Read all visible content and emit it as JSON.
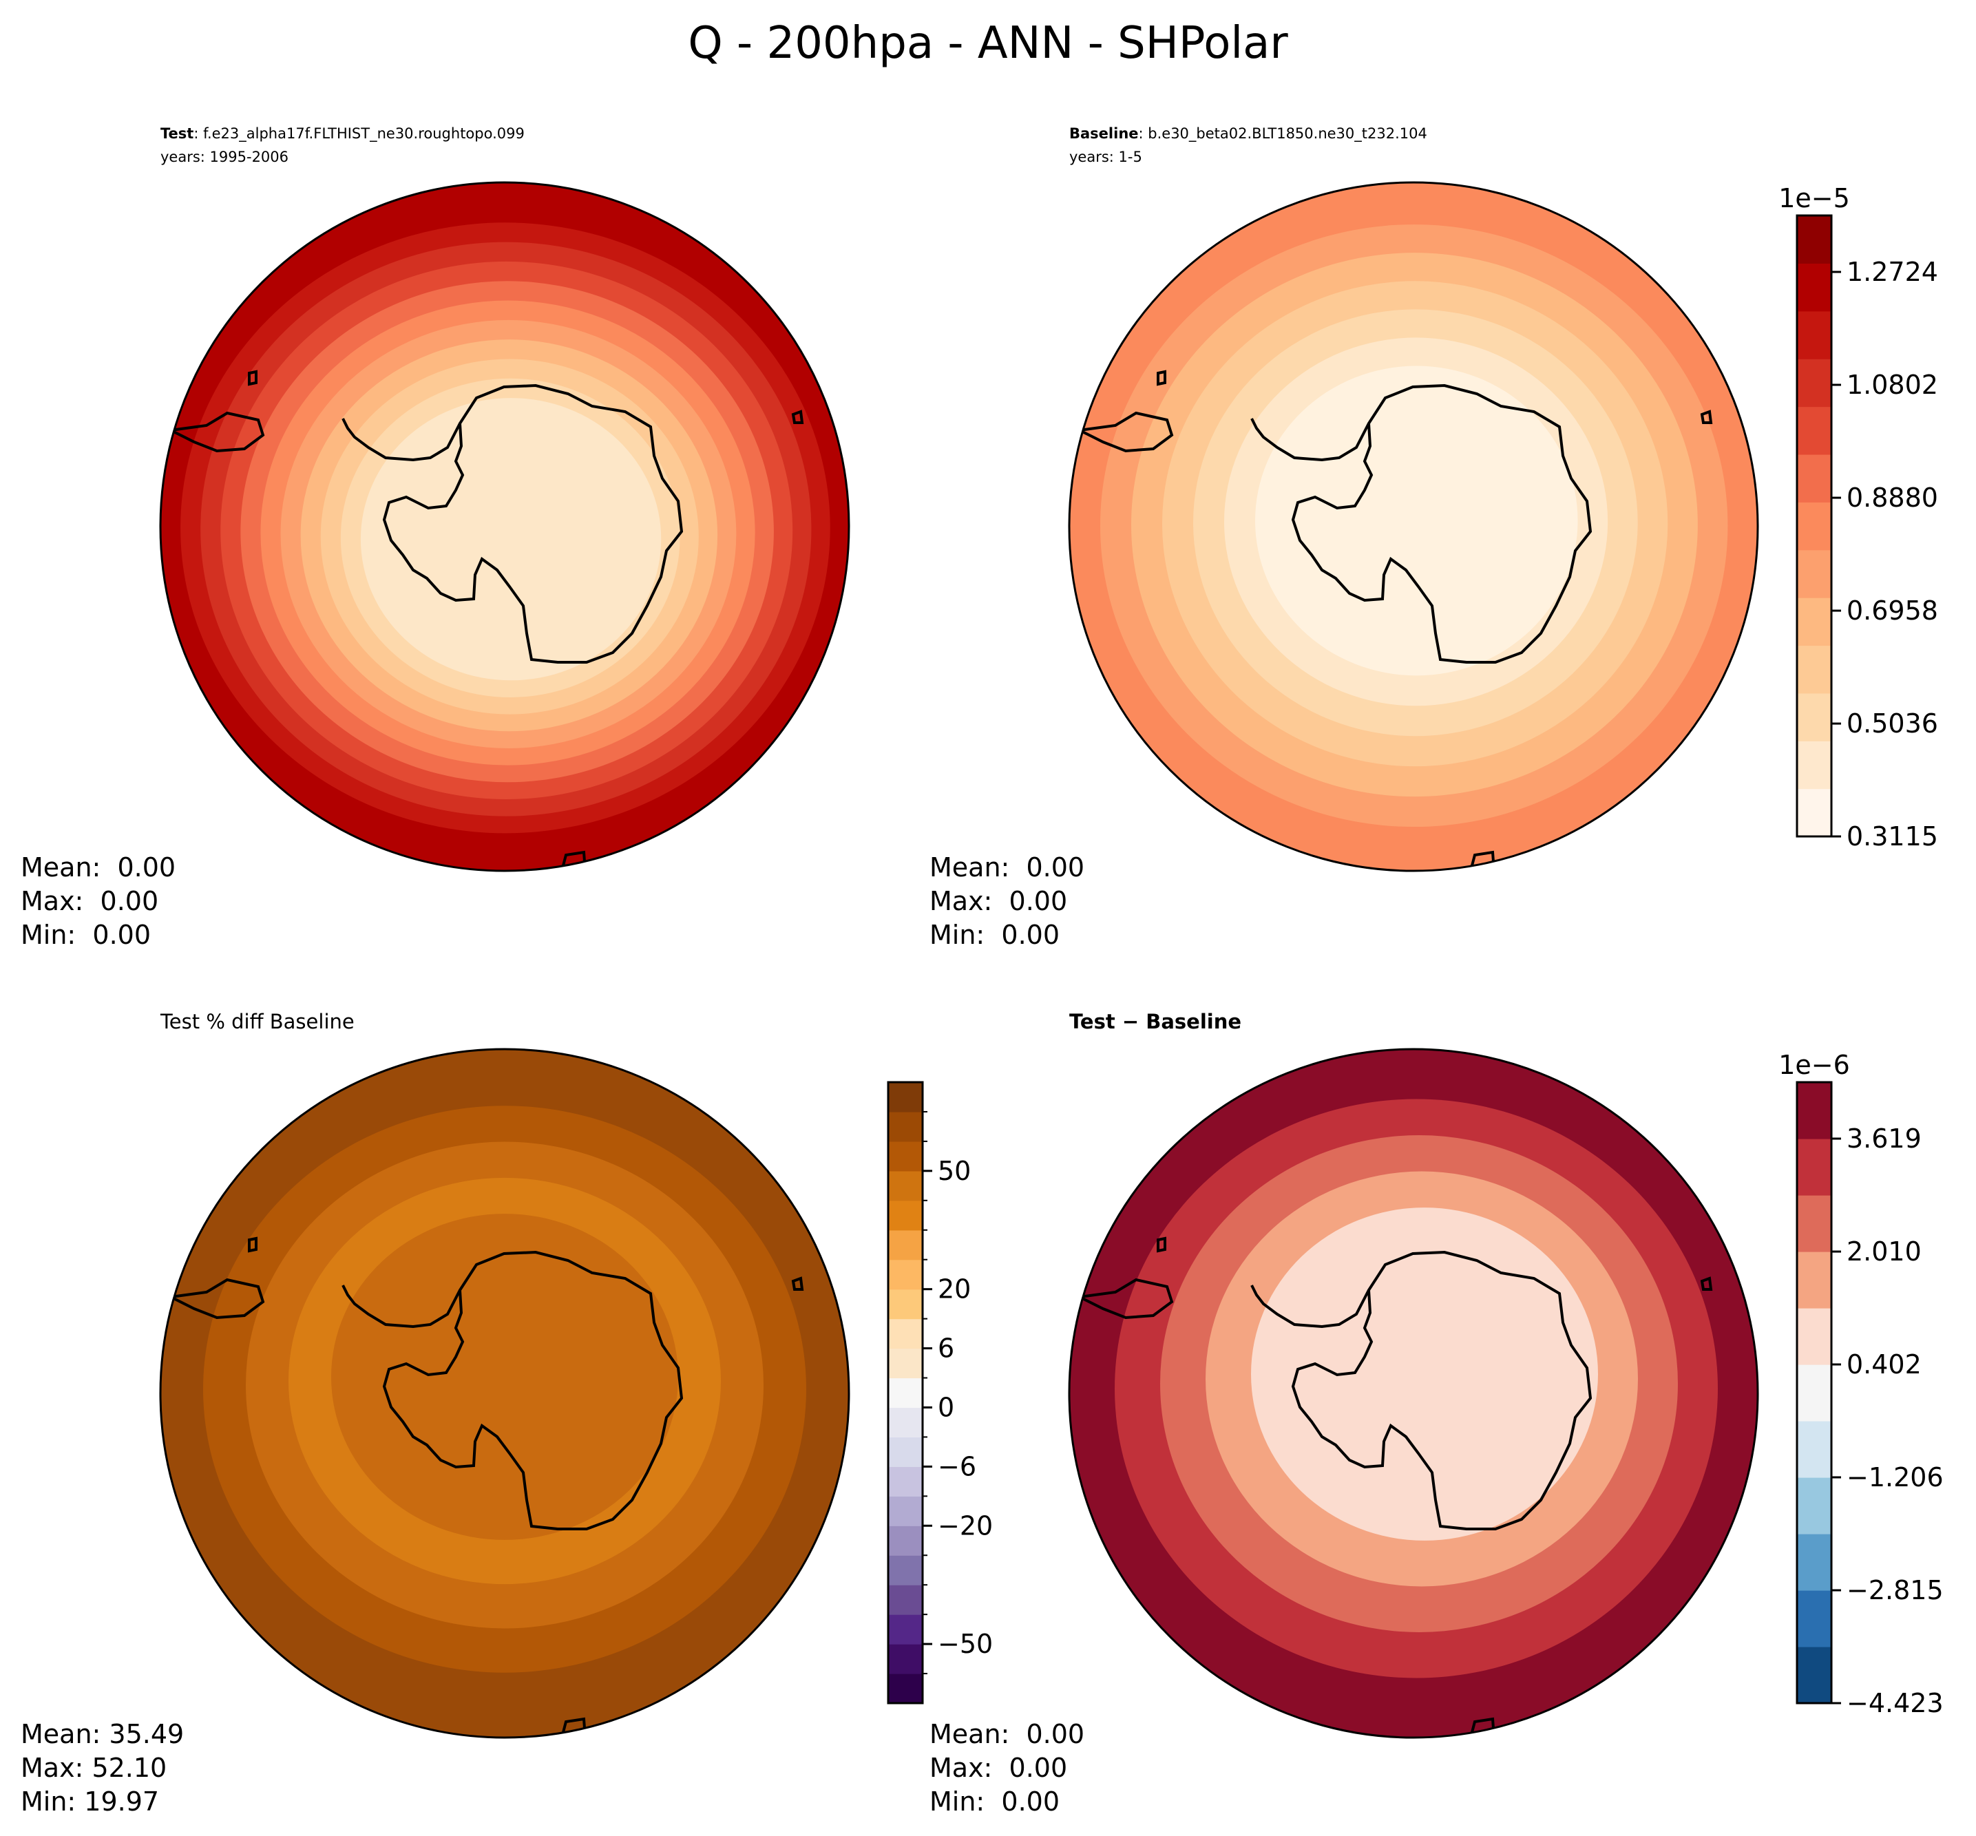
{
  "figure_title": "Q - 200hpa - ANN - SHPolar",
  "colors": {
    "outline": "#000000",
    "background": "#ffffff"
  },
  "chart_data": [
    {
      "type": "heatmap",
      "panel": "test",
      "title_bold": "Test",
      "title_rest": ": f.e23_alpha17f.FLTHIST_ne30.roughtopo.099",
      "subtitle": "years: 1995-2006",
      "projection": "south polar stereographic",
      "ring_colors_inner_to_outer": [
        "#fde7c8",
        "#fdd9ac",
        "#fdca95",
        "#fdb981",
        "#fca06e",
        "#fb8a5c",
        "#f26e4c",
        "#e34a33",
        "#d33122",
        "#c5170f",
        "#b10000"
      ],
      "stats": {
        "mean": "Mean:  0.00",
        "max": "Max:  0.00",
        "min": "Min:  0.00"
      }
    },
    {
      "type": "heatmap",
      "panel": "baseline",
      "title_bold": "Baseline",
      "title_rest": ": b.e30_beta02.BLT1850.ne30_t232.104",
      "subtitle": "years: 1-5",
      "projection": "south polar stereographic",
      "ring_colors_inner_to_outer": [
        "#fff2df",
        "#fee7c9",
        "#fdd9ac",
        "#fdca95",
        "#fdb981",
        "#fca06e",
        "#fb8a5c"
      ],
      "stats": {
        "mean": "Mean:  0.00",
        "max": "Max:  0.00",
        "min": "Min:  0.00"
      },
      "colorbar": {
        "exponent_label": "1e−5",
        "tick_labels": [
          "1.2724",
          "1.0802",
          "0.8880",
          "0.6958",
          "0.5036",
          "0.3115"
        ],
        "tick_values": [
          1.2724,
          1.0802,
          0.888,
          0.6958,
          0.5036,
          0.3115
        ],
        "range": [
          0.3115,
          1.3685
        ],
        "colors_bottom_to_top": [
          "#fff5eb",
          "#fee8cd",
          "#fdd9ac",
          "#fdca95",
          "#fdb981",
          "#fca06e",
          "#fb8a5c",
          "#f26e4c",
          "#e34a33",
          "#d33122",
          "#c5170f",
          "#b10000",
          "#8f0000"
        ]
      }
    },
    {
      "type": "heatmap",
      "panel": "percent_diff",
      "title": "Test % diff Baseline",
      "projection": "south polar stereographic",
      "ring_colors_inner_to_outer": [
        "#c96b10",
        "#d97d14",
        "#c96b10",
        "#b35806",
        "#9a4a08"
      ],
      "stats": {
        "mean": "Mean: 35.49",
        "max": "Max: 52.10",
        "min": "Min: 19.97"
      },
      "colorbar": {
        "tick_labels": [
          "50",
          "20",
          "6",
          "0",
          "−6",
          "−20",
          "−50"
        ],
        "tick_values": [
          50,
          20,
          6,
          0,
          -6,
          -20,
          -50
        ],
        "colors_bottom_to_top": [
          "#2d004b",
          "#3f0d66",
          "#542788",
          "#6a4c93",
          "#8073ac",
          "#9b8fbf",
          "#b2abd2",
          "#c8c3e0",
          "#d8daeb",
          "#e6e6f0",
          "#f7f7f7",
          "#fbe6c8",
          "#fee0b6",
          "#fdc97a",
          "#fdb863",
          "#f5a344",
          "#e08214",
          "#cf7410",
          "#b35806",
          "#9c4a05",
          "#7f3b08"
        ]
      }
    },
    {
      "type": "heatmap",
      "panel": "difference",
      "title": "Test − Baseline",
      "projection": "south polar stereographic",
      "ring_colors_inner_to_outer": [
        "#fbdccf",
        "#f4a582",
        "#de6b5a",
        "#c1313a",
        "#8a0c28"
      ],
      "stats": {
        "mean": "Mean:  0.00",
        "max": "Max:  0.00",
        "min": "Min:  0.00"
      },
      "colorbar": {
        "exponent_label": "1e−6",
        "tick_labels": [
          "3.619",
          "2.010",
          "0.402",
          "−1.206",
          "−2.815",
          "−4.423"
        ],
        "tick_values": [
          3.619,
          2.01,
          0.402,
          -1.206,
          -2.815,
          -4.423
        ],
        "range": [
          -4.423,
          4.423
        ],
        "colors_bottom_to_top": [
          "#104a80",
          "#2a6fb0",
          "#5a9dca",
          "#98c8e0",
          "#d3e5f1",
          "#f5f5f5",
          "#fbdccf",
          "#f4a582",
          "#de6b5a",
          "#c1313a",
          "#8a0c28"
        ]
      }
    }
  ]
}
